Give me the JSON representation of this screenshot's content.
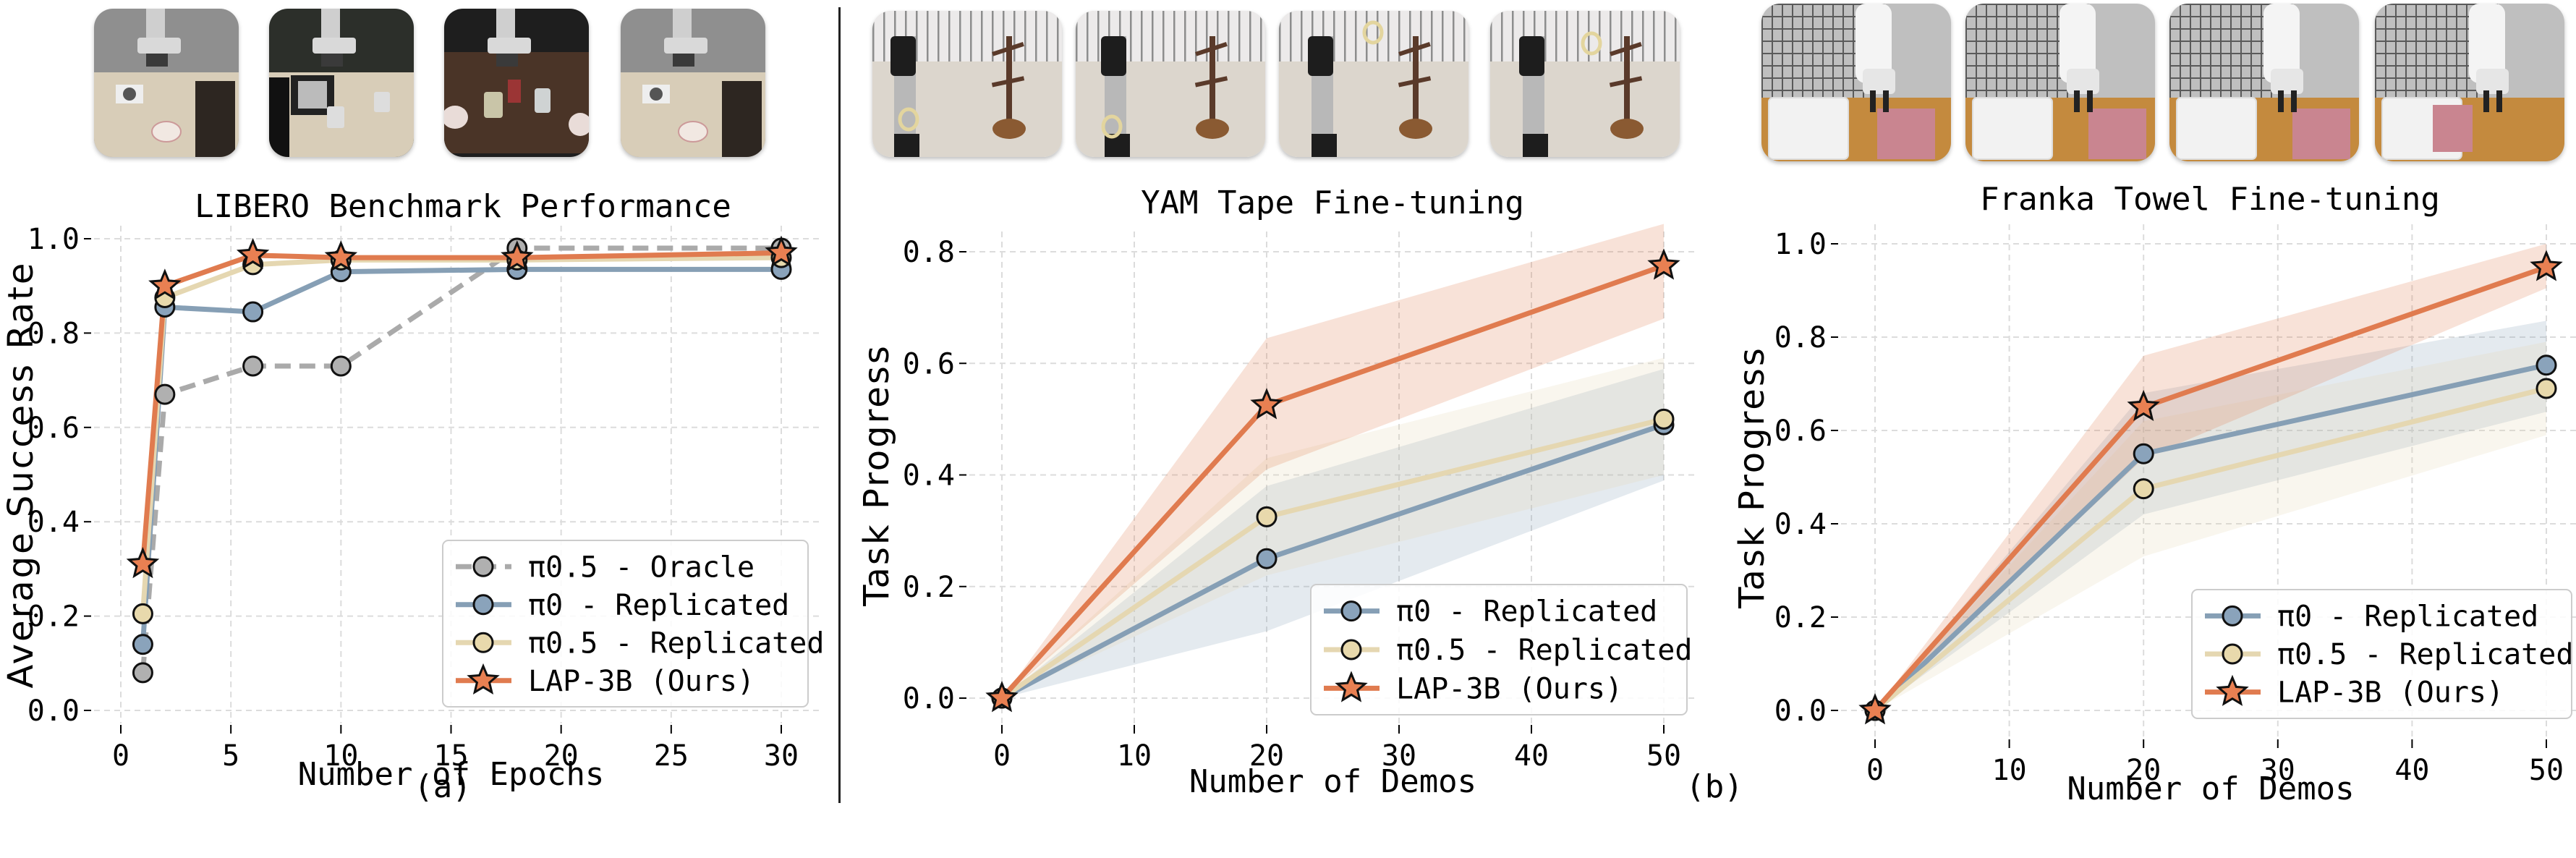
{
  "panel_labels": {
    "a": "(a)",
    "b": "(b)"
  },
  "colors": {
    "oracle": "#aaaaaa",
    "pi0": "#869fb5",
    "pi05": "#e5d7b1",
    "lap": "#e07b4f",
    "marker_outline": "#111111",
    "oracle_marker": "#b0b0b0",
    "pi0_marker": "#8aa3bb",
    "pi05_marker": "#e8d9ac",
    "lap_marker": "#e98052"
  },
  "thumbnails": {
    "libero": [
      {
        "name": "libero-scene-stove-cabinet",
        "scene": "libero-light"
      },
      {
        "name": "libero-scene-microwave-mugs",
        "scene": "libero-kitchen"
      },
      {
        "name": "libero-scene-dark-table-mugs",
        "scene": "libero-dark"
      },
      {
        "name": "libero-scene-drawer-bowls",
        "scene": "libero-light"
      }
    ],
    "yam": [
      {
        "name": "yam-tape-step-1",
        "scene": "yam"
      },
      {
        "name": "yam-tape-step-2",
        "scene": "yam"
      },
      {
        "name": "yam-tape-step-3",
        "scene": "yam"
      },
      {
        "name": "yam-tape-step-4",
        "scene": "yam"
      }
    ],
    "franka": [
      {
        "name": "franka-towel-step-1",
        "scene": "franka"
      },
      {
        "name": "franka-towel-step-2",
        "scene": "franka"
      },
      {
        "name": "franka-towel-step-3",
        "scene": "franka"
      },
      {
        "name": "franka-towel-step-4",
        "scene": "franka"
      }
    ]
  },
  "chart_data": [
    {
      "id": "libero",
      "type": "line",
      "title": "LIBERO Benchmark Performance",
      "xlabel": "Number of Epochs",
      "ylabel": "Average Success Rate",
      "xlim": [
        -1,
        31.5
      ],
      "ylim": [
        -0.03,
        1.03
      ],
      "xticks": [
        0,
        5,
        10,
        15,
        20,
        25,
        30
      ],
      "yticks": [
        0.0,
        0.2,
        0.4,
        0.6,
        0.8,
        1.0
      ],
      "ytick_format": 1,
      "grid": true,
      "legend_position": "lower right",
      "x": [
        1,
        2,
        6,
        10,
        18,
        30
      ],
      "series": [
        {
          "name": "π0.5 - Oracle",
          "key": "oracle",
          "style": "dashed",
          "marker": "circle",
          "values": [
            0.08,
            0.67,
            0.73,
            0.73,
            0.98,
            0.98
          ]
        },
        {
          "name": "π0 - Replicated",
          "key": "pi0",
          "style": "solid",
          "marker": "circle",
          "values": [
            0.14,
            0.855,
            0.845,
            0.93,
            0.935,
            0.935
          ]
        },
        {
          "name": "π0.5 - Replicated",
          "key": "pi05",
          "style": "solid",
          "marker": "circle",
          "values": [
            0.205,
            0.875,
            0.945,
            0.955,
            0.955,
            0.96
          ]
        },
        {
          "name": "LAP-3B (Ours)",
          "key": "lap",
          "style": "solid",
          "marker": "star",
          "values": [
            0.31,
            0.9,
            0.965,
            0.96,
            0.96,
            0.97
          ]
        }
      ]
    },
    {
      "id": "yam",
      "type": "line",
      "title": "YAM Tape Fine-tuning",
      "xlabel": "Number of Demos",
      "ylabel": "Task Progress",
      "xlim": [
        -2.5,
        52.5
      ],
      "ylim": [
        -0.04,
        0.85
      ],
      "xticks": [
        0,
        10,
        20,
        30,
        40,
        50
      ],
      "yticks": [
        0.0,
        0.2,
        0.4,
        0.6,
        0.8
      ],
      "ytick_format": 1,
      "grid": true,
      "legend_position": "lower right",
      "x": [
        0,
        20,
        50
      ],
      "series": [
        {
          "name": "π0 - Replicated",
          "key": "pi0",
          "style": "solid",
          "marker": "circle",
          "values": [
            0.0,
            0.25,
            0.49
          ],
          "lower": [
            0.0,
            0.12,
            0.39
          ],
          "upper": [
            0.0,
            0.38,
            0.59
          ]
        },
        {
          "name": "π0.5 - Replicated",
          "key": "pi05",
          "style": "solid",
          "marker": "circle",
          "values": [
            0.0,
            0.325,
            0.5
          ],
          "lower": [
            0.0,
            0.22,
            0.4
          ],
          "upper": [
            0.0,
            0.43,
            0.61
          ]
        },
        {
          "name": "LAP-3B (Ours)",
          "key": "lap",
          "style": "solid",
          "marker": "star",
          "values": [
            0.0,
            0.525,
            0.775
          ],
          "lower": [
            0.0,
            0.41,
            0.68
          ],
          "upper": [
            0.0,
            0.645,
            0.85
          ]
        }
      ]
    },
    {
      "id": "franka",
      "type": "line",
      "title": "Franka Towel Fine-tuning",
      "xlabel": "Number of Demos",
      "ylabel": "Task Progress",
      "xlim": [
        -2.5,
        52.5
      ],
      "ylim": [
        -0.04,
        1.04
      ],
      "xticks": [
        0,
        10,
        20,
        30,
        40,
        50
      ],
      "yticks": [
        0.0,
        0.2,
        0.4,
        0.6,
        0.8,
        1.0
      ],
      "ytick_format": 1,
      "grid": true,
      "legend_position": "lower right",
      "x": [
        0,
        20,
        50
      ],
      "series": [
        {
          "name": "π0 - Replicated",
          "key": "pi0",
          "style": "solid",
          "marker": "circle",
          "values": [
            0.0,
            0.55,
            0.74
          ],
          "lower": [
            0.0,
            0.42,
            0.64
          ],
          "upper": [
            0.0,
            0.68,
            0.835
          ]
        },
        {
          "name": "π0.5 - Replicated",
          "key": "pi05",
          "style": "solid",
          "marker": "circle",
          "values": [
            0.0,
            0.475,
            0.69
          ],
          "lower": [
            0.0,
            0.33,
            0.59
          ],
          "upper": [
            0.0,
            0.62,
            0.79
          ]
        },
        {
          "name": "LAP-3B (Ours)",
          "key": "lap",
          "style": "solid",
          "marker": "star",
          "values": [
            0.0,
            0.65,
            0.95
          ],
          "lower": [
            0.0,
            0.54,
            0.905
          ],
          "upper": [
            0.0,
            0.76,
            1.0
          ]
        }
      ]
    }
  ]
}
